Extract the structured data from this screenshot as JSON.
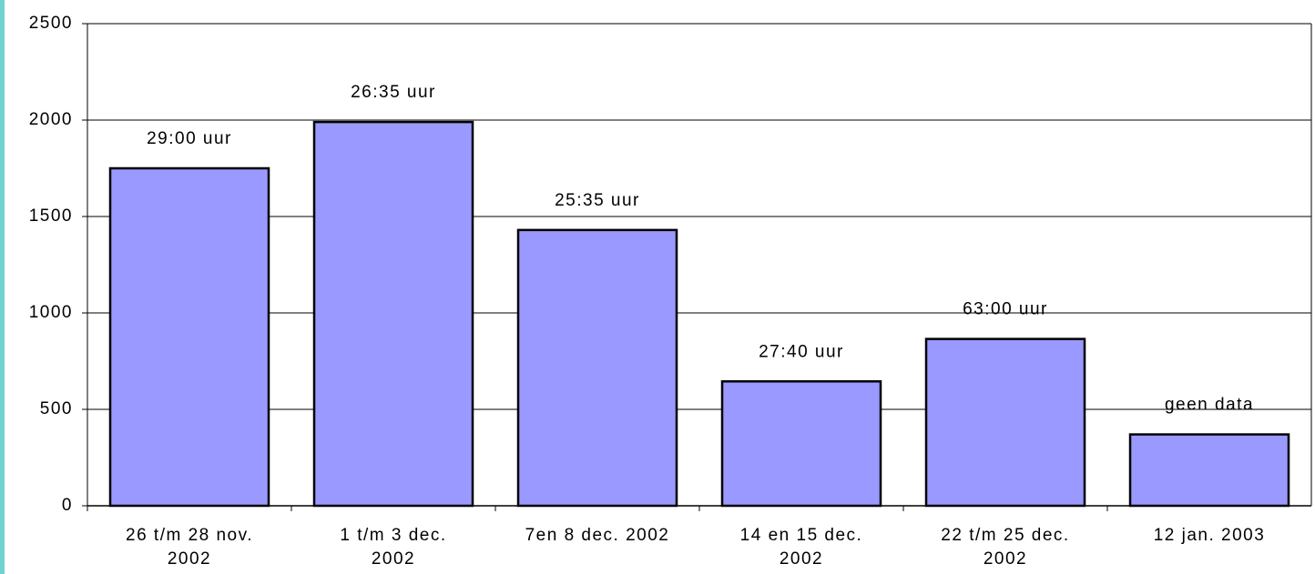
{
  "chart_data": {
    "type": "bar",
    "categories": [
      "26 t/m 28 nov.\n2002",
      "1 t/m 3 dec.\n2002",
      "7en 8 dec. 2002",
      "14 en 15 dec.\n2002",
      "22 t/m 25 dec.\n2002",
      "12 jan. 2003"
    ],
    "values": [
      1750,
      1990,
      1430,
      645,
      865,
      370
    ],
    "annotations": [
      "29:00 uur",
      "26:35 uur",
      "25:35 uur",
      "27:40 uur",
      "63:00 uur",
      "geen data"
    ],
    "color": "#9999ff",
    "ylim": [
      0,
      2500
    ],
    "yticks": [
      0,
      500,
      1000,
      1500,
      2000,
      2500
    ],
    "grid": true
  }
}
